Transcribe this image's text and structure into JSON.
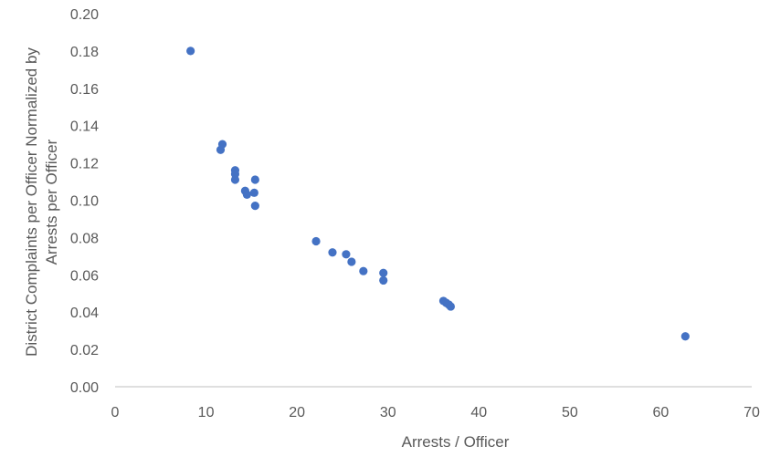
{
  "chart_data": {
    "type": "scatter",
    "title": "",
    "xlabel": "Arrests / Officer",
    "ylabel_lines": [
      "District Complaints per Officer Normalized by",
      "Arrests per Officer"
    ],
    "xlim": [
      0,
      70
    ],
    "ylim": [
      0,
      0.2
    ],
    "x_ticks": [
      "0",
      "10",
      "20",
      "30",
      "40",
      "50",
      "60",
      "70"
    ],
    "y_ticks": [
      "0.00",
      "0.02",
      "0.04",
      "0.06",
      "0.08",
      "0.10",
      "0.12",
      "0.14",
      "0.16",
      "0.18",
      "0.20"
    ],
    "grid": false,
    "legend": "none",
    "marker_color": "#4472c4",
    "series": [
      {
        "points": [
          [
            8.3,
            0.18
          ],
          [
            11.8,
            0.13
          ],
          [
            11.6,
            0.127
          ],
          [
            13.2,
            0.116
          ],
          [
            13.2,
            0.114
          ],
          [
            13.2,
            0.111
          ],
          [
            15.4,
            0.111
          ],
          [
            14.3,
            0.105
          ],
          [
            14.5,
            0.103
          ],
          [
            15.3,
            0.104
          ],
          [
            15.4,
            0.097
          ],
          [
            22.1,
            0.078
          ],
          [
            23.9,
            0.072
          ],
          [
            25.4,
            0.071
          ],
          [
            26.0,
            0.067
          ],
          [
            27.3,
            0.062
          ],
          [
            29.5,
            0.061
          ],
          [
            29.5,
            0.057
          ],
          [
            36.1,
            0.046
          ],
          [
            36.4,
            0.045
          ],
          [
            36.7,
            0.044
          ],
          [
            36.9,
            0.043
          ],
          [
            62.7,
            0.027
          ]
        ]
      }
    ]
  }
}
